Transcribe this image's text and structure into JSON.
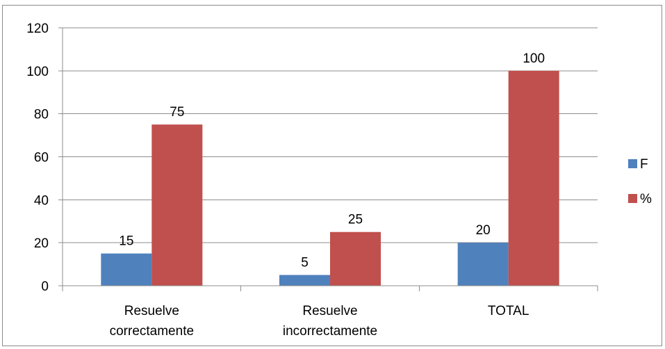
{
  "chart_data": {
    "type": "bar",
    "title": "",
    "xlabel": "",
    "ylabel": "",
    "categories": [
      [
        "Resuelve",
        "correctamente"
      ],
      [
        "Resuelve",
        "incorrectamente"
      ],
      [
        "TOTAL"
      ]
    ],
    "series": [
      {
        "name": "F",
        "color": "#4f81bd",
        "values": [
          15,
          5,
          20
        ]
      },
      {
        "name": "%",
        "color": "#c0504d",
        "values": [
          75,
          25,
          100
        ]
      }
    ],
    "ylim": [
      0,
      120
    ],
    "yticks": [
      0,
      20,
      40,
      60,
      80,
      100,
      120
    ],
    "grid": true,
    "legend_position": "right"
  }
}
